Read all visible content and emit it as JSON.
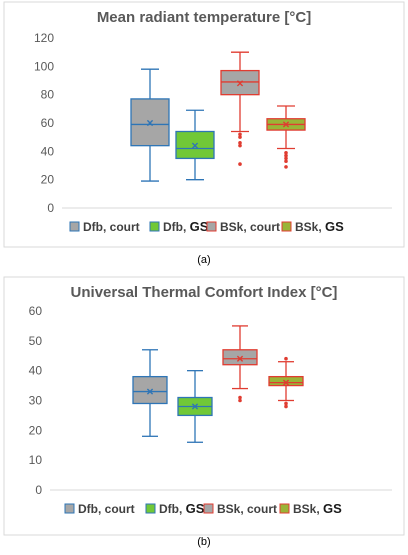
{
  "chart_data": [
    {
      "type": "box",
      "panel_label": "(a)",
      "title": "Mean radiant temperature [°C]",
      "ylim": [
        0,
        120
      ],
      "yticks": [
        0,
        20,
        40,
        60,
        80,
        100,
        120
      ],
      "yticklabels": [
        "0",
        "20",
        "40",
        "60",
        "80",
        "100",
        "120"
      ],
      "grid": false,
      "legend": "bottom",
      "series": [
        {
          "name": "Dfb, court",
          "legend_plain": "Dfb, court",
          "legend_bold": "",
          "fill": "#a6a6a6",
          "stroke": "#2e75b6",
          "min": 19,
          "q1": 44,
          "median": 59,
          "q3": 77,
          "max": 98,
          "mean": 60,
          "outliers": []
        },
        {
          "name": "Dfb, GS",
          "legend_plain": "Dfb, ",
          "legend_bold": "GS",
          "fill": "#71c837",
          "stroke": "#2e75b6",
          "min": 20,
          "q1": 35,
          "median": 42,
          "q3": 54,
          "max": 69,
          "mean": 44,
          "outliers": []
        },
        {
          "name": "BSk, court",
          "legend_plain": "BSk, court",
          "legend_bold": "",
          "fill": "#a6a6a6",
          "stroke": "#e03c31",
          "min": 54,
          "q1": 80,
          "median": 89,
          "q3": 97,
          "max": 110,
          "mean": 88,
          "outliers": [
            31,
            44,
            46,
            50,
            52
          ]
        },
        {
          "name": "BSk, GS",
          "legend_plain": "BSk, ",
          "legend_bold": "GS",
          "fill": "#9ab437",
          "stroke": "#e03c31",
          "min": 42,
          "q1": 55,
          "median": 59,
          "q3": 63,
          "max": 72,
          "mean": 59,
          "outliers": [
            29,
            33,
            35,
            37,
            39
          ]
        }
      ]
    },
    {
      "type": "box",
      "panel_label": "(b)",
      "title": "Universal Thermal Comfort Index [°C]",
      "ylim": [
        0,
        60
      ],
      "yticks": [
        0,
        10,
        20,
        30,
        40,
        50,
        60
      ],
      "yticklabels": [
        "0",
        "10",
        "20",
        "30",
        "40",
        "50",
        "60"
      ],
      "grid": false,
      "legend": "bottom",
      "series": [
        {
          "name": "Dfb, court",
          "legend_plain": "Dfb, court",
          "legend_bold": "",
          "fill": "#a6a6a6",
          "stroke": "#2e75b6",
          "min": 18,
          "q1": 29,
          "median": 33,
          "q3": 38,
          "max": 47,
          "mean": 33,
          "outliers": []
        },
        {
          "name": "Dfb, GS",
          "legend_plain": "Dfb, ",
          "legend_bold": "GS",
          "fill": "#71c837",
          "stroke": "#2e75b6",
          "min": 16,
          "q1": 25,
          "median": 28,
          "q3": 31,
          "max": 40,
          "mean": 28,
          "outliers": []
        },
        {
          "name": "BSk, court",
          "legend_plain": "BSk, court",
          "legend_bold": "",
          "fill": "#a6a6a6",
          "stroke": "#e03c31",
          "min": 34,
          "q1": 42,
          "median": 44,
          "q3": 47,
          "max": 55,
          "mean": 44,
          "outliers": [
            30,
            31
          ]
        },
        {
          "name": "BSk, GS",
          "legend_plain": "BSk, ",
          "legend_bold": "GS",
          "fill": "#9ab437",
          "stroke": "#e03c31",
          "min": 30,
          "q1": 35,
          "median": 36,
          "q3": 38,
          "max": 43,
          "mean": 36,
          "outliers": [
            28,
            29,
            44
          ]
        }
      ]
    }
  ]
}
